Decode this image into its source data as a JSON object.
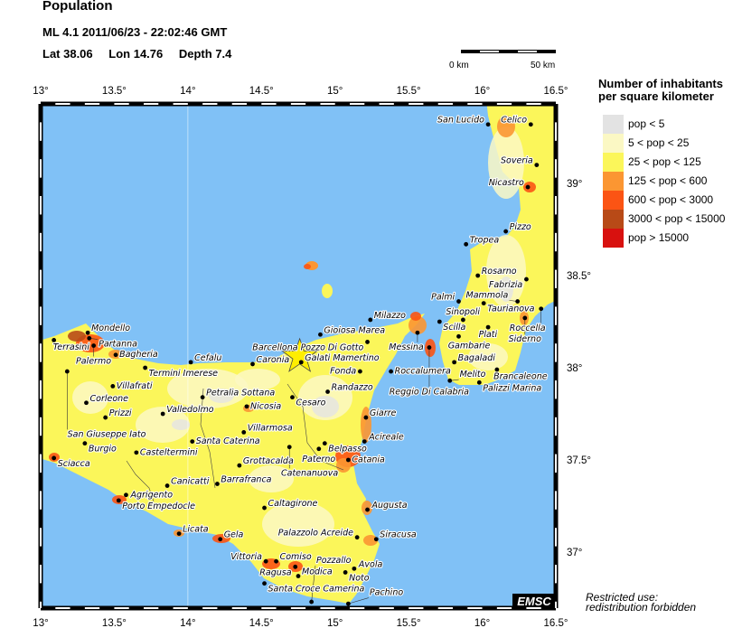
{
  "header": {
    "title": "Population",
    "event": "ML 4.1  2011/06/23 - 22:02:46 GMT",
    "lat_label": "Lat 38.06",
    "lon_label": "Lon  14.76",
    "depth_label": "Depth  7.4"
  },
  "scale_bar": {
    "start_label": "0 km",
    "end_label": "50 km"
  },
  "map": {
    "lon_range": [
      13,
      16.5
    ],
    "lat_range": [
      36.7,
      39.43
    ],
    "lon_ticks": [
      "13°",
      "13.5°",
      "14°",
      "14.5°",
      "15°",
      "15.5°",
      "16°",
      "16.5°"
    ],
    "lat_ticks": [
      "37°",
      "37.5°",
      "38°",
      "38.5°",
      "39°"
    ],
    "epicenter": {
      "lat": 38.06,
      "lon": 14.76,
      "icon": "star-icon",
      "color": "#ffee00"
    },
    "sea_color": "#80c1f6",
    "cities": [
      {
        "name": "Terrasini",
        "lon": 13.09,
        "lat": 38.15
      },
      {
        "name": "Mondello",
        "lon": 13.32,
        "lat": 38.19
      },
      {
        "name": "Partanna",
        "lon": 13.33,
        "lat": 38.16
      },
      {
        "name": "Palermo",
        "lon": 13.36,
        "lat": 38.12
      },
      {
        "name": "Bagheria",
        "lon": 13.51,
        "lat": 38.07
      },
      {
        "name": "Termini Imerese",
        "lon": 13.71,
        "lat": 38.0
      },
      {
        "name": "Cefalu",
        "lon": 14.02,
        "lat": 38.03
      },
      {
        "name": "San Giuseppe Iato",
        "lon": 13.18,
        "lat": 37.98
      },
      {
        "name": "Villafrati",
        "lon": 13.49,
        "lat": 37.9
      },
      {
        "name": "Corleone",
        "lon": 13.31,
        "lat": 37.81
      },
      {
        "name": "Prizzi",
        "lon": 13.44,
        "lat": 37.73
      },
      {
        "name": "Valledolmo",
        "lon": 13.83,
        "lat": 37.75
      },
      {
        "name": "Petralia Sottana",
        "lon": 14.1,
        "lat": 37.84
      },
      {
        "name": "Nicosia",
        "lon": 14.4,
        "lat": 37.79
      },
      {
        "name": "Burgio",
        "lon": 13.3,
        "lat": 37.59
      },
      {
        "name": "Sciacca",
        "lon": 13.09,
        "lat": 37.51
      },
      {
        "name": "Casteltermini",
        "lon": 13.65,
        "lat": 37.54
      },
      {
        "name": "Santa Caterina",
        "lon": 14.03,
        "lat": 37.6
      },
      {
        "name": "Villarmosa",
        "lon": 14.38,
        "lat": 37.65
      },
      {
        "name": "Grottacalda",
        "lon": 14.35,
        "lat": 37.47
      },
      {
        "name": "Caronia",
        "lon": 14.44,
        "lat": 38.02
      },
      {
        "name": "Galati Mamertino",
        "lon": 14.77,
        "lat": 38.03
      },
      {
        "name": "Gioiosa Marea",
        "lon": 14.9,
        "lat": 38.18
      },
      {
        "name": "Milazzo",
        "lon": 15.24,
        "lat": 38.26
      },
      {
        "name": "Barcellona Pozzo Di Gotto",
        "lon": 15.22,
        "lat": 38.14
      },
      {
        "name": "Fonda",
        "lon": 15.17,
        "lat": 37.98
      },
      {
        "name": "Roccalumera",
        "lon": 15.38,
        "lat": 37.98
      },
      {
        "name": "Cesaro",
        "lon": 14.71,
        "lat": 37.84
      },
      {
        "name": "Randazzo",
        "lon": 14.95,
        "lat": 37.87
      },
      {
        "name": "Giarre",
        "lon": 15.21,
        "lat": 37.73
      },
      {
        "name": "Acireale",
        "lon": 15.2,
        "lat": 37.6
      },
      {
        "name": "Belpasso",
        "lon": 14.93,
        "lat": 37.59
      },
      {
        "name": "Paterno",
        "lon": 14.89,
        "lat": 37.56
      },
      {
        "name": "Catenanuova",
        "lon": 14.69,
        "lat": 37.57
      },
      {
        "name": "Catania",
        "lon": 15.09,
        "lat": 37.5
      },
      {
        "name": "Canicatti",
        "lon": 13.86,
        "lat": 37.36
      },
      {
        "name": "Barrafranca",
        "lon": 14.2,
        "lat": 37.37
      },
      {
        "name": "Agrigento",
        "lon": 13.58,
        "lat": 37.31
      },
      {
        "name": "Porto Empedocle",
        "lon": 13.53,
        "lat": 37.28
      },
      {
        "name": "Caltagirone",
        "lon": 14.52,
        "lat": 37.24
      },
      {
        "name": "Augusta",
        "lon": 15.22,
        "lat": 37.23
      },
      {
        "name": "Palazzolo Acreide",
        "lon": 15.15,
        "lat": 37.08
      },
      {
        "name": "Siracusa",
        "lon": 15.28,
        "lat": 37.07
      },
      {
        "name": "Licata",
        "lon": 13.94,
        "lat": 37.1
      },
      {
        "name": "Gela",
        "lon": 14.22,
        "lat": 37.07
      },
      {
        "name": "Vittoria",
        "lon": 14.53,
        "lat": 36.95
      },
      {
        "name": "Comiso",
        "lon": 14.6,
        "lat": 36.95
      },
      {
        "name": "Ragusa",
        "lon": 14.73,
        "lat": 36.92
      },
      {
        "name": "Modica",
        "lon": 14.75,
        "lat": 36.87
      },
      {
        "name": "Santa Croce Camerina",
        "lon": 14.52,
        "lat": 36.83
      },
      {
        "name": "Noto",
        "lon": 15.07,
        "lat": 36.89
      },
      {
        "name": "Avola",
        "lon": 15.13,
        "lat": 36.91
      },
      {
        "name": "Pozzallo",
        "lon": 14.84,
        "lat": 36.73
      },
      {
        "name": "Pachino",
        "lon": 15.09,
        "lat": 36.72
      },
      {
        "name": "San Lucido",
        "lon": 16.04,
        "lat": 39.32
      },
      {
        "name": "Celico",
        "lon": 16.33,
        "lat": 39.32
      },
      {
        "name": "Soveria",
        "lon": 16.37,
        "lat": 39.1
      },
      {
        "name": "Nicastro",
        "lon": 16.31,
        "lat": 38.98
      },
      {
        "name": "Pizzo",
        "lon": 16.16,
        "lat": 38.74
      },
      {
        "name": "Tropea",
        "lon": 15.89,
        "lat": 38.67
      },
      {
        "name": "Rosarno",
        "lon": 15.97,
        "lat": 38.5
      },
      {
        "name": "Fabrizia",
        "lon": 16.3,
        "lat": 38.48
      },
      {
        "name": "Palmi",
        "lon": 15.84,
        "lat": 38.36
      },
      {
        "name": "Taurianova",
        "lon": 16.01,
        "lat": 38.35
      },
      {
        "name": "Mammola",
        "lon": 16.24,
        "lat": 38.36
      },
      {
        "name": "Roccella",
        "lon": 16.4,
        "lat": 38.32
      },
      {
        "name": "Siderno",
        "lon": 16.29,
        "lat": 38.27
      },
      {
        "name": "Scilla",
        "lon": 15.71,
        "lat": 38.25
      },
      {
        "name": "Sinopoli",
        "lon": 15.87,
        "lat": 38.26
      },
      {
        "name": "Plati",
        "lon": 16.04,
        "lat": 38.22
      },
      {
        "name": "Messina",
        "lon": 15.56,
        "lat": 38.19
      },
      {
        "name": "Gambarie",
        "lon": 15.84,
        "lat": 38.17
      },
      {
        "name": "Reggio Di Calabria",
        "lon": 15.64,
        "lat": 38.11
      },
      {
        "name": "Bagaladi",
        "lon": 15.81,
        "lat": 38.03
      },
      {
        "name": "Brancaleone",
        "lon": 16.1,
        "lat": 37.99
      },
      {
        "name": "Melito",
        "lon": 15.78,
        "lat": 37.93
      },
      {
        "name": "Palizzi Marina",
        "lon": 15.98,
        "lat": 37.92
      }
    ],
    "logo": "EMSC"
  },
  "legend": {
    "title_line1": "Number of inhabitants",
    "title_line2": "per square kilometer",
    "items": [
      {
        "label": "pop < 5",
        "color": "#e3e3e3"
      },
      {
        "label": "5 < pop < 25",
        "color": "#fbf8c4"
      },
      {
        "label": "25 < pop < 125",
        "color": "#fbf65a"
      },
      {
        "label": "125 < pop < 600",
        "color": "#fb9632"
      },
      {
        "label": "600 < pop < 3000",
        "color": "#fb5414"
      },
      {
        "label": "3000 < pop < 15000",
        "color": "#b84a17"
      },
      {
        "label": "pop > 15000",
        "color": "#d8110f"
      }
    ]
  },
  "footer": {
    "restricted_line1": "Restricted use:",
    "restricted_line2": "redistribution forbidden"
  }
}
